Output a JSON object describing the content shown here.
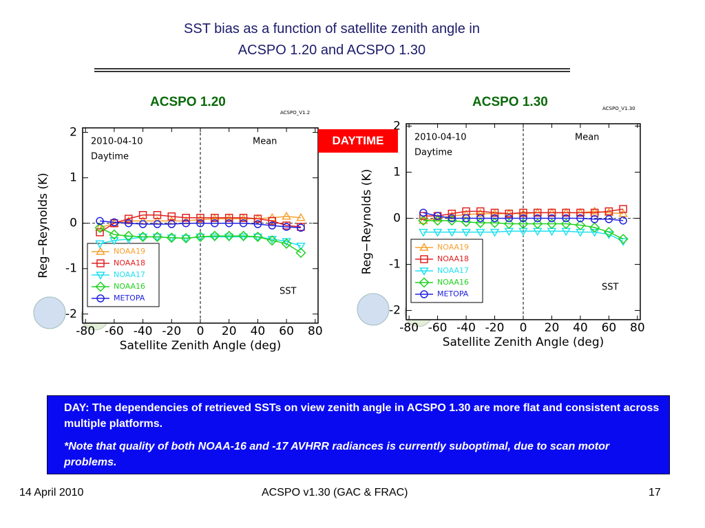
{
  "slide": {
    "title": [
      "SST bias as a function of satellite zenith angle in",
      "ACSPO 1.20 and ACSPO 1.30"
    ],
    "badge": "DAYTIME",
    "notes": [
      "DAY: The dependencies of retrieved SSTs on view zenith angle in ACSPO 1.30 are more flat and consistent across multiple platforms.",
      "*Note that quality of both NOAA-16 and -17 AVHRR radiances is currently suboptimal, due to scan motor problems."
    ],
    "footer": {
      "date": "14 April 2010",
      "center": "ACSPO v1.30 (GAC & FRAC)",
      "page": "17"
    }
  },
  "chart_data": [
    {
      "type": "line",
      "title": "ACSPO 1.20",
      "version_label": "ACSPO_V1.2",
      "annotations": {
        "date": "2010-04-10",
        "period": "Daytime",
        "statistic": "Mean",
        "variable": "SST"
      },
      "xlabel": "Satellite Zenith Angle (deg)",
      "ylabel": "Reg−Reynolds (K)",
      "x": [
        -70,
        -60,
        -50,
        -40,
        -30,
        -20,
        -10,
        0,
        10,
        20,
        30,
        40,
        50,
        60,
        70
      ],
      "xlim": [
        -82,
        82
      ],
      "xticks": [
        -80,
        -60,
        -40,
        -20,
        0,
        20,
        40,
        60,
        80
      ],
      "ylim": [
        -2.2,
        2.1
      ],
      "yticks": [
        -2,
        -1,
        0,
        1,
        2
      ],
      "vline": 0,
      "series": [
        {
          "name": "NOAA19",
          "color": "#f5a030",
          "marker": "triangle-up",
          "values": [
            -0.1,
            0.0,
            0.05,
            0.05,
            0.05,
            0.05,
            0.05,
            0.08,
            0.1,
            0.1,
            0.1,
            0.1,
            0.12,
            0.15,
            0.12
          ]
        },
        {
          "name": "NOAA18",
          "color": "#e02020",
          "marker": "square",
          "values": [
            -0.2,
            0.0,
            0.1,
            0.18,
            0.18,
            0.15,
            0.12,
            0.12,
            0.12,
            0.12,
            0.12,
            0.1,
            0.05,
            -0.05,
            -0.08
          ]
        },
        {
          "name": "NOAA17",
          "color": "#20e0f0",
          "marker": "triangle-down",
          "values": [
            -0.45,
            -0.38,
            -0.35,
            -0.3,
            -0.3,
            -0.32,
            -0.33,
            -0.3,
            -0.3,
            -0.3,
            -0.3,
            -0.3,
            -0.35,
            -0.4,
            -0.5
          ]
        },
        {
          "name": "NOAA16",
          "color": "#20d020",
          "marker": "diamond",
          "values": [
            -0.1,
            -0.25,
            -0.28,
            -0.3,
            -0.3,
            -0.32,
            -0.33,
            -0.3,
            -0.28,
            -0.28,
            -0.28,
            -0.3,
            -0.38,
            -0.45,
            -0.65
          ]
        },
        {
          "name": "METOPA",
          "color": "#2020e0",
          "marker": "circle",
          "values": [
            0.05,
            0.02,
            0.0,
            -0.02,
            -0.02,
            -0.02,
            0.0,
            0.0,
            0.0,
            0.0,
            0.0,
            -0.02,
            -0.05,
            -0.08,
            -0.1
          ]
        }
      ]
    },
    {
      "type": "line",
      "title": "ACSPO 1.30",
      "version_label": "ACSPO_V1.30",
      "annotations": {
        "date": "2010-04-10",
        "period": "Daytime",
        "statistic": "Mean",
        "variable": "SST"
      },
      "xlabel": "Satellite Zenith Angle (deg)",
      "ylabel": "Reg−Reynolds (K)",
      "x": [
        -70,
        -60,
        -50,
        -40,
        -30,
        -20,
        -10,
        0,
        10,
        20,
        30,
        40,
        50,
        60,
        70
      ],
      "xlim": [
        -82,
        82
      ],
      "xticks": [
        -80,
        -60,
        -40,
        -20,
        0,
        20,
        40,
        60,
        80
      ],
      "ylim": [
        -2.2,
        2.05
      ],
      "yticks": [
        -2,
        -1,
        0,
        1,
        2
      ],
      "vline": 0,
      "series": [
        {
          "name": "NOAA19",
          "color": "#f5a030",
          "marker": "triangle-up",
          "values": [
            -0.05,
            0.0,
            0.05,
            0.08,
            0.1,
            0.1,
            0.1,
            0.1,
            0.12,
            0.12,
            0.12,
            0.12,
            0.15,
            0.12,
            0.1
          ]
        },
        {
          "name": "NOAA18",
          "color": "#e02020",
          "marker": "square",
          "values": [
            0.05,
            0.05,
            0.1,
            0.15,
            0.15,
            0.12,
            0.1,
            0.12,
            0.12,
            0.12,
            0.12,
            0.12,
            0.12,
            0.15,
            0.2
          ]
        },
        {
          "name": "NOAA17",
          "color": "#20e0f0",
          "marker": "triangle-down",
          "values": [
            -0.3,
            -0.3,
            -0.3,
            -0.3,
            -0.3,
            -0.3,
            -0.28,
            -0.28,
            -0.28,
            -0.28,
            -0.28,
            -0.3,
            -0.3,
            -0.35,
            -0.5
          ]
        },
        {
          "name": "NOAA16",
          "color": "#20d020",
          "marker": "diamond",
          "values": [
            -0.05,
            -0.05,
            -0.05,
            -0.08,
            -0.1,
            -0.1,
            -0.12,
            -0.12,
            -0.12,
            -0.12,
            -0.12,
            -0.15,
            -0.2,
            -0.3,
            -0.45
          ]
        },
        {
          "name": "METOPA",
          "color": "#2020e0",
          "marker": "circle",
          "values": [
            0.12,
            0.05,
            0.0,
            0.0,
            0.0,
            0.0,
            0.0,
            0.0,
            0.0,
            0.0,
            0.0,
            0.0,
            -0.02,
            -0.02,
            -0.05
          ]
        }
      ]
    }
  ]
}
